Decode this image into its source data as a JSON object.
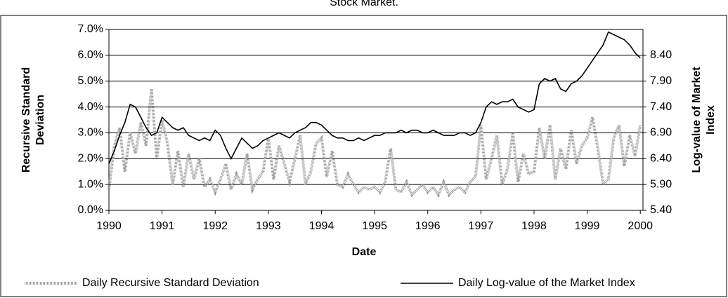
{
  "chart_data": {
    "type": "line",
    "title": "Stock Market.",
    "xlabel": "Date",
    "ylabel": [
      "Recursive Standard",
      "Deviation"
    ],
    "y2label": [
      "Log-value of Market",
      "Index"
    ],
    "x": [
      1990.0,
      1990.1,
      1990.2,
      1990.3,
      1990.4,
      1990.5,
      1990.6,
      1990.7,
      1990.8,
      1990.9,
      1991.0,
      1991.1,
      1991.2,
      1991.3,
      1991.4,
      1991.5,
      1991.6,
      1991.7,
      1991.8,
      1991.9,
      1992.0,
      1992.1,
      1992.2,
      1992.3,
      1992.4,
      1992.5,
      1992.6,
      1992.7,
      1992.8,
      1992.9,
      1993.0,
      1993.1,
      1993.2,
      1993.3,
      1993.4,
      1993.5,
      1993.6,
      1993.7,
      1993.8,
      1993.9,
      1994.0,
      1994.1,
      1994.2,
      1994.3,
      1994.4,
      1994.5,
      1994.6,
      1994.7,
      1994.8,
      1994.9,
      1995.0,
      1995.1,
      1995.2,
      1995.3,
      1995.4,
      1995.5,
      1995.6,
      1995.7,
      1995.8,
      1995.9,
      1996.0,
      1996.1,
      1996.2,
      1996.3,
      1996.4,
      1996.5,
      1996.6,
      1996.7,
      1996.8,
      1996.9,
      1997.0,
      1997.1,
      1997.2,
      1997.3,
      1997.4,
      1997.5,
      1997.6,
      1997.7,
      1997.8,
      1997.9,
      1998.0,
      1998.1,
      1998.2,
      1998.3,
      1998.4,
      1998.5,
      1998.6,
      1998.7,
      1998.8,
      1998.9,
      1999.0,
      1999.1,
      1999.2,
      1999.3,
      1999.4,
      1999.5,
      1999.6,
      1999.7,
      1999.8,
      1999.9,
      2000.0
    ],
    "series": [
      {
        "name": "Daily Recursive Standard Deviation",
        "color": "#999999",
        "style": "dotted",
        "values": [
          0.8,
          2.5,
          3.2,
          1.5,
          3.0,
          2.2,
          3.4,
          2.5,
          4.7,
          2.0,
          3.5,
          2.6,
          1.0,
          2.3,
          0.9,
          2.2,
          1.2,
          2.0,
          0.9,
          1.2,
          0.7,
          1.2,
          1.8,
          0.8,
          1.4,
          1.0,
          2.2,
          0.8,
          1.2,
          1.5,
          2.8,
          1.2,
          2.5,
          1.8,
          1.1,
          2.0,
          2.9,
          1.0,
          1.5,
          2.6,
          2.8,
          1.3,
          2.3,
          1.0,
          0.9,
          1.4,
          1.0,
          0.7,
          0.9,
          0.8,
          0.9,
          0.7,
          1.1,
          2.4,
          0.8,
          0.7,
          1.1,
          0.6,
          0.8,
          1.0,
          0.7,
          0.9,
          0.6,
          1.1,
          0.6,
          0.8,
          0.9,
          0.7,
          1.1,
          1.3,
          3.3,
          1.2,
          2.0,
          2.9,
          1.0,
          1.6,
          3.0,
          1.1,
          2.2,
          1.4,
          1.5,
          3.2,
          2.0,
          3.3,
          1.2,
          2.4,
          1.6,
          3.1,
          1.8,
          2.5,
          2.8,
          3.6,
          2.4,
          1.0,
          1.2,
          2.8,
          3.3,
          1.7,
          2.9,
          2.1,
          3.3
        ]
      },
      {
        "name": "Daily Log-value of the Market Index",
        "color": "#000000",
        "style": "solid",
        "axis": "y2",
        "values": [
          6.3,
          6.55,
          6.85,
          7.1,
          7.45,
          7.4,
          7.2,
          7.0,
          6.85,
          6.9,
          7.2,
          7.1,
          7.0,
          6.95,
          7.0,
          6.85,
          6.8,
          6.75,
          6.8,
          6.75,
          6.95,
          6.85,
          6.6,
          6.4,
          6.6,
          6.8,
          6.7,
          6.6,
          6.65,
          6.75,
          6.8,
          6.85,
          6.9,
          6.85,
          6.8,
          6.9,
          6.95,
          7.0,
          7.1,
          7.1,
          7.05,
          6.95,
          6.85,
          6.8,
          6.8,
          6.75,
          6.75,
          6.8,
          6.75,
          6.8,
          6.85,
          6.85,
          6.9,
          6.9,
          6.9,
          6.95,
          6.9,
          6.95,
          6.95,
          6.9,
          6.9,
          6.95,
          6.9,
          6.85,
          6.85,
          6.85,
          6.9,
          6.9,
          6.85,
          6.9,
          7.1,
          7.4,
          7.5,
          7.45,
          7.5,
          7.5,
          7.55,
          7.4,
          7.35,
          7.3,
          7.35,
          7.85,
          7.95,
          7.9,
          7.95,
          7.75,
          7.7,
          7.85,
          7.9,
          8.0,
          8.15,
          8.3,
          8.45,
          8.6,
          8.85,
          8.8,
          8.75,
          8.7,
          8.6,
          8.45,
          8.35
        ]
      }
    ],
    "xlim": [
      1990,
      2000.05
    ],
    "xticks": [
      1990,
      1991,
      1992,
      1993,
      1994,
      1995,
      1996,
      1997,
      1998,
      1999,
      2000
    ],
    "ylim": [
      0,
      7
    ],
    "yticks": [
      {
        "value": 0,
        "label": "0.0%"
      },
      {
        "value": 1,
        "label": "1.0%"
      },
      {
        "value": 2,
        "label": "2.0%"
      },
      {
        "value": 3,
        "label": "3.0%"
      },
      {
        "value": 4,
        "label": "4.0%"
      },
      {
        "value": 5,
        "label": "5.0%"
      },
      {
        "value": 6,
        "label": "6.0%"
      },
      {
        "value": 7,
        "label": "7.0%"
      }
    ],
    "y2lim": [
      5.4,
      8.9
    ],
    "y2ticks": [
      {
        "value": 5.4,
        "label": "5.40"
      },
      {
        "value": 5.9,
        "label": "5.90"
      },
      {
        "value": 6.4,
        "label": "6.40"
      },
      {
        "value": 6.9,
        "label": "6.90"
      },
      {
        "value": 7.4,
        "label": "7.40"
      },
      {
        "value": 7.9,
        "label": "7.90"
      },
      {
        "value": 8.4,
        "label": "8.40"
      }
    ],
    "grid": true,
    "legend": "bottom"
  }
}
